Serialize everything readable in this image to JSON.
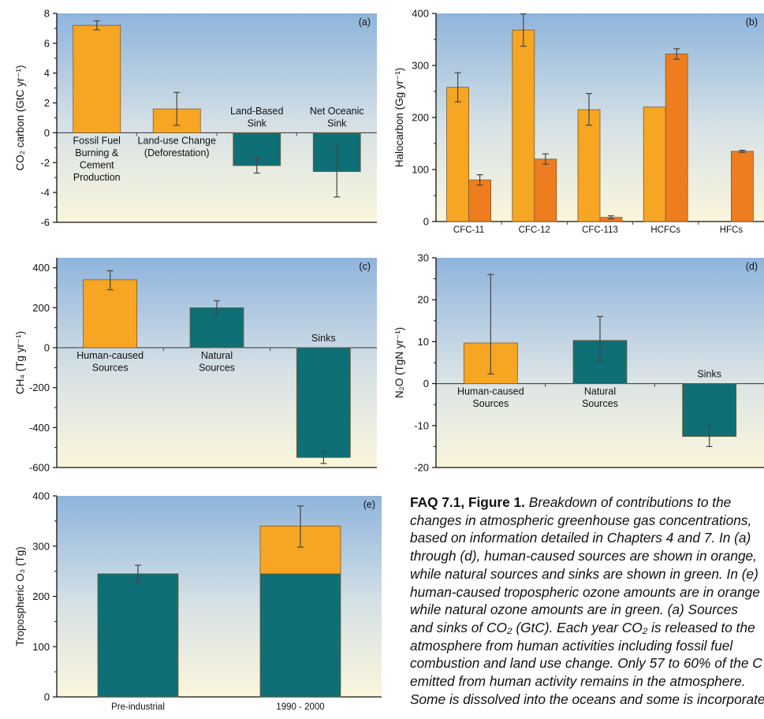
{
  "chart_data": [
    {
      "type": "bar",
      "panel_label": "(a)",
      "ylabel": "CO₂ carbon (GtC yr⁻¹)",
      "ylim": [
        -6,
        8
      ],
      "yticks": [
        -6,
        -4,
        -2,
        0,
        2,
        4,
        6,
        8
      ],
      "categories": [
        [
          "Fossil Fuel",
          "Burning &",
          "Cement",
          "Production"
        ],
        [
          "Land-use Change",
          "(Deforestation)"
        ],
        [
          "Land-Based",
          "Sink"
        ],
        [
          "Net Oceanic",
          "Sink"
        ]
      ],
      "values": [
        7.2,
        1.6,
        -2.2,
        -2.6
      ],
      "errors": [
        [
          6.9,
          7.5
        ],
        [
          0.5,
          2.7
        ],
        [
          -2.7,
          -1.7
        ],
        [
          -4.3,
          -0.9
        ]
      ],
      "colors": [
        "orange",
        "orange",
        "green",
        "green"
      ]
    },
    {
      "type": "bar",
      "panel_label": "(b)",
      "ylabel": "Halocarbon (Gg yr⁻¹)",
      "ylim": [
        0,
        400
      ],
      "yticks": [
        0,
        100,
        200,
        300,
        400
      ],
      "categories": [
        "CFC-11",
        "CFC-12",
        "CFC-113",
        "HCFCs",
        "HFCs"
      ],
      "series": [
        {
          "values": [
            258,
            368,
            215,
            220,
            null
          ],
          "errors": [
            [
              230,
              286
            ],
            [
              337,
              399
            ],
            [
              185,
              246
            ],
            null,
            null
          ],
          "color": "orange"
        },
        {
          "values": [
            80,
            120,
            8,
            322,
            135
          ],
          "errors": [
            [
              70,
              90
            ],
            [
              110,
              130
            ],
            [
              5,
              11
            ],
            [
              312,
              332
            ],
            [
              133,
              137
            ]
          ],
          "color": "dark-orange"
        }
      ]
    },
    {
      "type": "bar",
      "panel_label": "(c)",
      "ylabel": "CH₄ (Tg yr⁻¹)",
      "ylim": [
        -600,
        450
      ],
      "yticks": [
        -600,
        -400,
        -200,
        0,
        200,
        400
      ],
      "categories": [
        [
          "Human-caused",
          "Sources"
        ],
        [
          "Natural",
          "Sources"
        ],
        [
          "Sinks"
        ]
      ],
      "values": [
        340,
        200,
        -550
      ],
      "errors": [
        [
          290,
          385
        ],
        [
          160,
          235
        ],
        [
          -580,
          -520
        ]
      ],
      "colors": [
        "orange",
        "green",
        "green"
      ]
    },
    {
      "type": "bar",
      "panel_label": "(d)",
      "ylabel": "N₂O (TgN yr⁻¹)",
      "ylim": [
        -20,
        30
      ],
      "yticks": [
        -20,
        -10,
        0,
        10,
        20,
        30
      ],
      "categories": [
        [
          "Human-caused",
          "Sources"
        ],
        [
          "Natural",
          "Sources"
        ],
        [
          "Sinks"
        ]
      ],
      "values": [
        9.7,
        10.3,
        -12.6
      ],
      "errors": [
        [
          2.3,
          26
        ],
        [
          5.4,
          16
        ],
        [
          -15,
          -10
        ]
      ],
      "colors": [
        "orange",
        "green",
        "green"
      ]
    },
    {
      "type": "bar",
      "stacked": true,
      "panel_label": "(e)",
      "ylabel": "Tropospheric O₃ (Tg)",
      "ylim": [
        0,
        400
      ],
      "yticks": [
        0,
        100,
        200,
        300,
        400
      ],
      "categories": [
        "Pre-industrial",
        "1990 - 2000"
      ],
      "series": [
        {
          "values": [
            245,
            245
          ],
          "color": "green"
        },
        {
          "values": [
            0,
            95
          ],
          "color": "orange"
        }
      ],
      "errors": [
        [
          228,
          262
        ],
        [
          298,
          380
        ]
      ]
    }
  ],
  "caption": {
    "head": "FAQ 7.1, Figure 1.",
    "lines": [
      "Breakdown of contributions to the",
      "changes in atmospheric greenhouse gas concentrations,",
      "based on information detailed in Chapters 4 and 7. In (a)",
      "through (d), human-caused sources are shown in orange,",
      "while natural sources and sinks are shown in green. In (e)",
      "human-caused tropospheric ozone amounts are in orange",
      "while natural ozone amounts are in green. (a) Sources",
      "and sinks of CO₂ (GtC). Each year CO₂ is released to the",
      "atmosphere from human activities including fossil fuel",
      "combustion and land use change. Only 57 to 60% of the C",
      "emitted from human activity remains in the atmosphere.",
      "Some is dissolved into the oceans and some is incorporated"
    ]
  },
  "colors": {
    "orange": "#f6a623",
    "dark-orange": "#ee7d1f",
    "green": "#0e6f76",
    "sky_top": "#8fb4dc",
    "sky_bottom": "#fbf6dc"
  }
}
